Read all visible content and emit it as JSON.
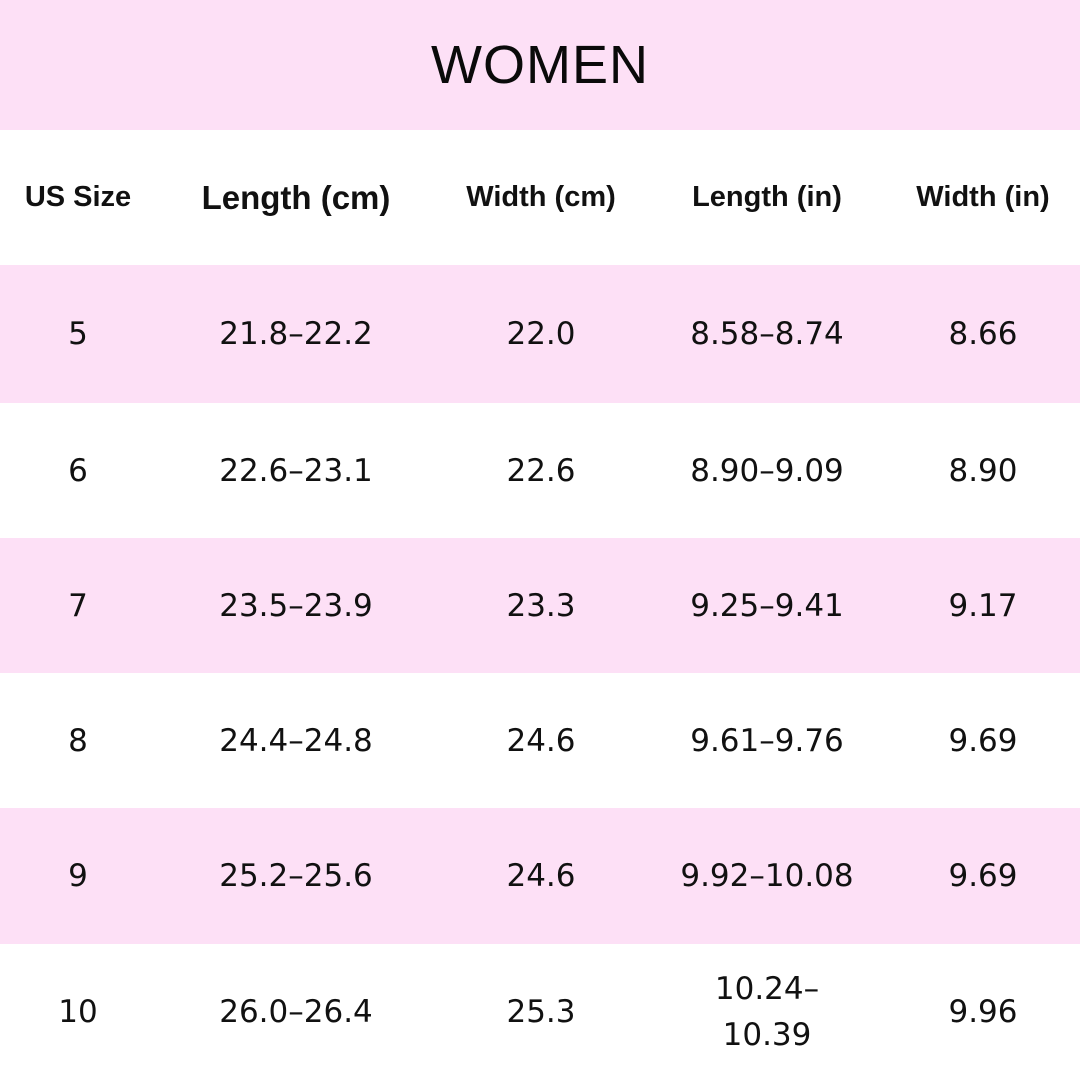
{
  "title": "WOMEN",
  "colors": {
    "pink_band": "#fde0f6",
    "white_band": "#ffffff",
    "text": "#111111"
  },
  "headers": [
    "US Size",
    "Length (cm)",
    "Width (cm)",
    "Length (in)",
    "Width (in)"
  ],
  "rows": [
    [
      "5",
      "21.8–22.2",
      "22.0",
      "8.58–8.74",
      "8.66"
    ],
    [
      "6",
      "22.6–23.1",
      "22.6",
      "8.90–9.09",
      "8.90"
    ],
    [
      "7",
      "23.5–23.9",
      "23.3",
      "9.25–9.41",
      "9.17"
    ],
    [
      "8",
      "24.4–24.8",
      "24.6",
      "9.61–9.76",
      "9.69"
    ],
    [
      "9",
      "25.2–25.6",
      "24.6",
      "9.92–10.08",
      "9.69"
    ],
    [
      "10",
      "26.0–26.4",
      "25.3",
      "10.24–\n10.39",
      "9.96"
    ]
  ]
}
